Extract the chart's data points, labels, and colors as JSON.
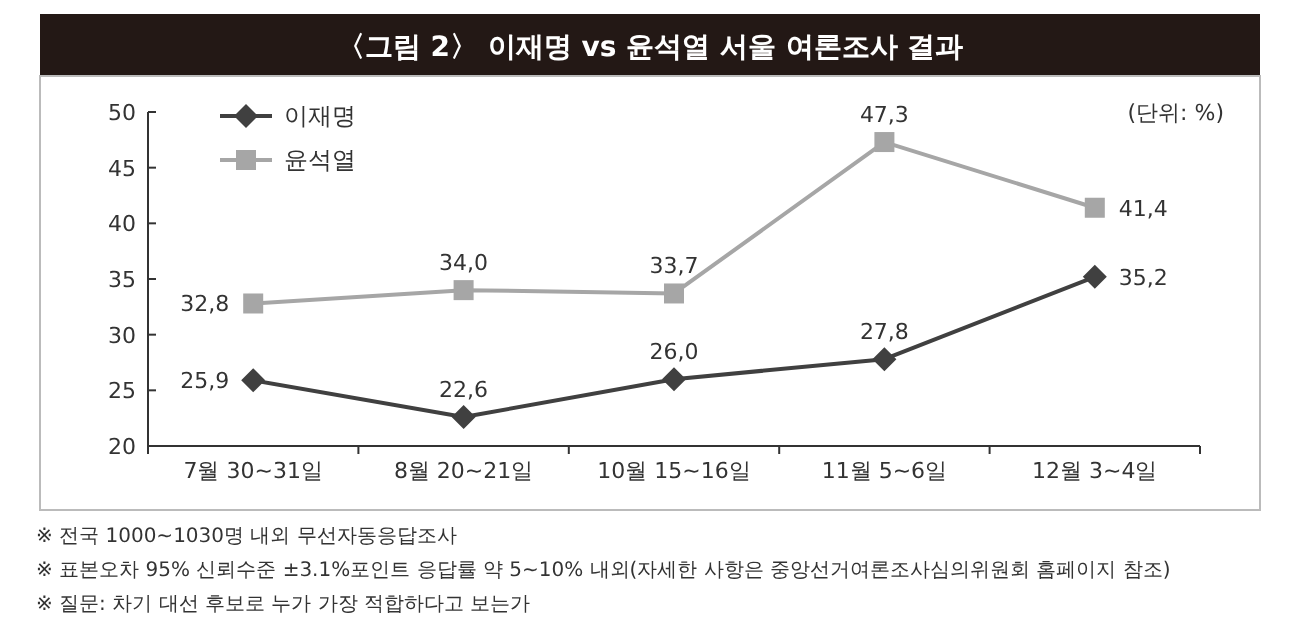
{
  "chart_data": {
    "type": "line",
    "title": "〈그림 2〉 이재명 vs 윤석열 서울 여론조사 결과",
    "categories": [
      "7월 30~31일",
      "8월 20~21일",
      "10월 15~16일",
      "11월 5~6일",
      "12월 3~4일"
    ],
    "series": [
      {
        "name": "이재명",
        "color": "#404040",
        "marker": "diamond",
        "values": [
          25.9,
          22.6,
          26.0,
          27.8,
          35.2
        ],
        "value_labels": [
          "25,9",
          "22,6",
          "26,0",
          "27,8",
          "35,2"
        ]
      },
      {
        "name": "윤석열",
        "color": "#a6a6a6",
        "marker": "square",
        "values": [
          32.8,
          34.0,
          33.7,
          47.3,
          41.4
        ],
        "value_labels": [
          "32,8",
          "34,0",
          "33,7",
          "47,3",
          "41,4"
        ]
      }
    ],
    "ylim": [
      20,
      50
    ],
    "yticks": [
      20,
      25,
      30,
      35,
      40,
      45,
      50
    ],
    "grid": false,
    "legend": "top left",
    "annotations": [
      "(단위: %)",
      "※ 전국 1000~1030명 내외 무선자동응답조사",
      "※ 표본오차 95% 신뢰수준 ±3.1%포인트 응답률 약 5~10% 내외(자세한 사항은 중앙선거여론조사심의위원회 홈페이지 참조)",
      "※ 질문: 차기 대선 후보로 누가 가장 적합하다고 보는가"
    ]
  }
}
